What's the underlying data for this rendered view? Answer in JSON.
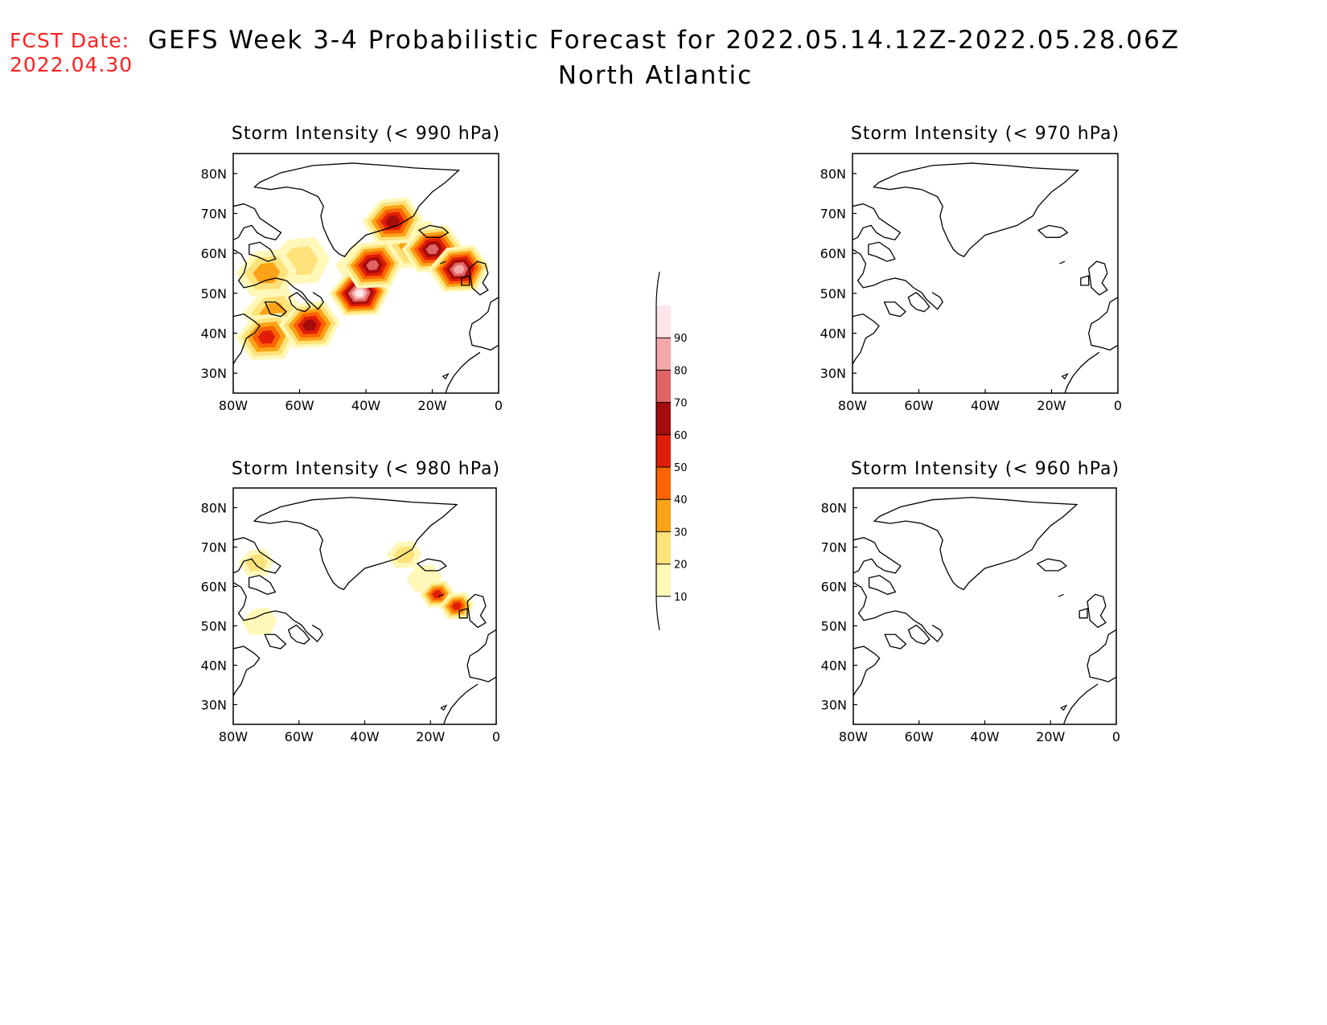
{
  "header": {
    "fcst_label": "FCST Date:",
    "fcst_date": "2022.04.30",
    "title_line1": "GEFS Week 3-4 Probabilistic Forecast for 2022.05.14.12Z-2022.05.28.06Z",
    "title_line2": "North Atlantic"
  },
  "colors": {
    "text_fcst": "#ff2020",
    "levels": [
      "#fff8b8",
      "#fde27a",
      "#fca318",
      "#fc6300",
      "#e01e08",
      "#a50c0c",
      "#e06464",
      "#f4a8a8",
      "#fde6ea"
    ]
  },
  "colorbar": {
    "ticks": [
      "10",
      "20",
      "30",
      "40",
      "50",
      "60",
      "70",
      "80",
      "90"
    ]
  },
  "map_axes": {
    "lon_ticks": [
      "80W",
      "60W",
      "40W",
      "20W",
      "0"
    ],
    "lat_ticks": [
      "80N",
      "70N",
      "60N",
      "50N",
      "40N",
      "30N"
    ],
    "lon_range": [
      -80,
      0
    ],
    "lat_range": [
      25,
      85
    ]
  },
  "panels": [
    {
      "title": "Storm Intensity (< 990 hPa)",
      "blobs": [
        {
          "lon": -40,
          "lat": 57,
          "prob": 40
        },
        {
          "lon": -25,
          "lat": 62,
          "prob": 40
        },
        {
          "lon": -60,
          "lat": 58,
          "prob": 20
        },
        {
          "lon": -70,
          "lat": 55,
          "prob": 30
        },
        {
          "lon": -68,
          "lat": 45,
          "prob": 30
        },
        {
          "lon": -42,
          "lat": 50,
          "prob": 90
        },
        {
          "lon": -38,
          "lat": 57,
          "prob": 70
        },
        {
          "lon": -20,
          "lat": 61,
          "prob": 70
        },
        {
          "lon": -12,
          "lat": 56,
          "prob": 80
        },
        {
          "lon": -32,
          "lat": 68,
          "prob": 60
        },
        {
          "lon": -70,
          "lat": 39,
          "prob": 50
        },
        {
          "lon": -57,
          "lat": 42,
          "prob": 60
        }
      ]
    },
    {
      "title": "Storm Intensity (< 970 hPa)",
      "blobs": []
    },
    {
      "title": "Storm Intensity (< 980 hPa)",
      "blobs": [
        {
          "lon": -22,
          "lat": 62,
          "prob": 10
        },
        {
          "lon": -18,
          "lat": 58,
          "prob": 50
        },
        {
          "lon": -12,
          "lat": 55,
          "prob": 50
        },
        {
          "lon": -28,
          "lat": 68,
          "prob": 20
        },
        {
          "lon": -72,
          "lat": 51,
          "prob": 10
        },
        {
          "lon": -73,
          "lat": 66,
          "prob": 20
        }
      ]
    },
    {
      "title": "Storm Intensity (< 960 hPa)",
      "blobs": []
    }
  ]
}
